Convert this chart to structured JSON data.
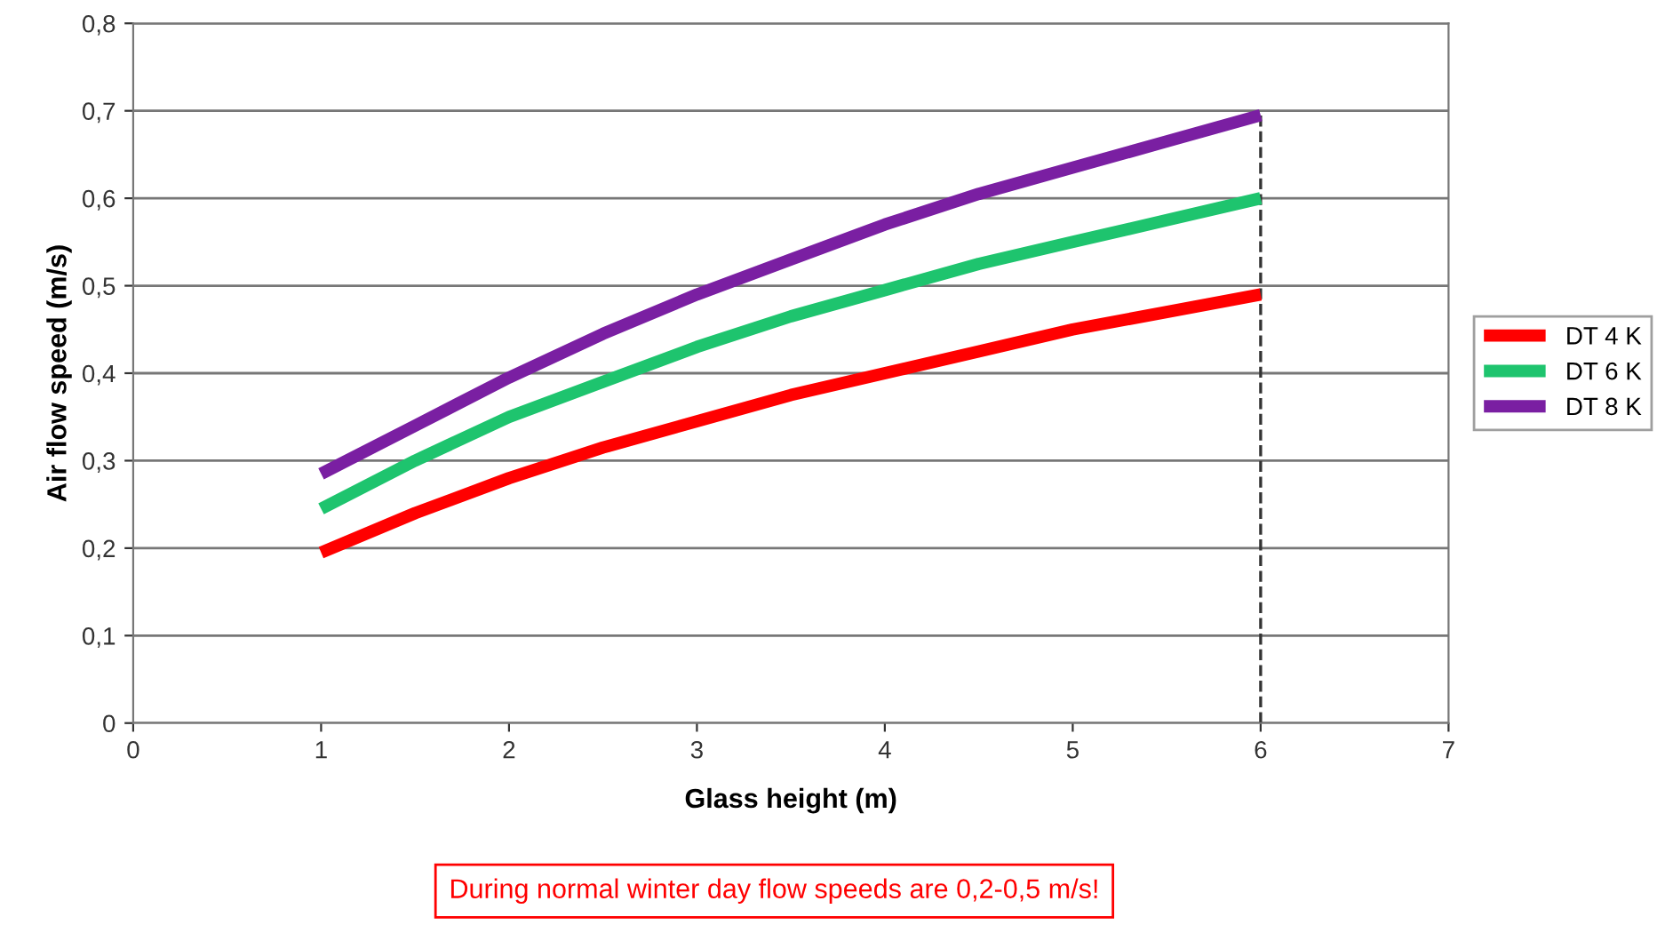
{
  "chart_data": {
    "type": "line",
    "xlabel": "Glass height (m)",
    "ylabel": "Air flow speed (m/s)",
    "x": [
      1,
      1.5,
      2,
      2.5,
      3,
      3.5,
      4,
      4.5,
      5,
      5.5,
      6
    ],
    "series": [
      {
        "name": "DT 4 K",
        "color": "#ff0000",
        "values": [
          0.195,
          0.24,
          0.28,
          0.315,
          0.345,
          0.375,
          0.4,
          0.425,
          0.45,
          0.47,
          0.49
        ]
      },
      {
        "name": "DT 6 K",
        "color": "#1ec46e",
        "values": [
          0.245,
          0.3,
          0.35,
          0.39,
          0.43,
          0.465,
          0.495,
          0.525,
          0.55,
          0.575,
          0.6
        ]
      },
      {
        "name": "DT 8 K",
        "color": "#7a1fa2",
        "values": [
          0.285,
          0.34,
          0.395,
          0.445,
          0.49,
          0.53,
          0.57,
          0.605,
          0.635,
          0.665,
          0.695
        ]
      }
    ],
    "xlim": [
      0,
      7
    ],
    "xticks": [
      0,
      1,
      2,
      3,
      4,
      5,
      6,
      7
    ],
    "ylim": [
      0,
      0.8
    ],
    "yticks": [
      0,
      {
        "value": 0.1,
        "label": "0,1"
      },
      {
        "value": 0.2,
        "label": "0,2"
      },
      {
        "value": 0.3,
        "label": "0,3"
      },
      {
        "value": 0.4,
        "label": "0,4"
      },
      {
        "value": 0.5,
        "label": "0,5"
      },
      {
        "value": 0.6,
        "label": "0,6"
      },
      {
        "value": 0.7,
        "label": "0,7"
      },
      {
        "value": 0.8,
        "label": "0,8"
      }
    ],
    "ref_lines": [
      {
        "axis": "x",
        "value": 6,
        "color": "#333333",
        "line_style": "dashed"
      }
    ],
    "annotations": [
      "During normal winter day flow speeds are 0,2-0,5 m/s!"
    ],
    "grid": "y",
    "legend": "right",
    "marker": "none",
    "line_style": "solid"
  }
}
